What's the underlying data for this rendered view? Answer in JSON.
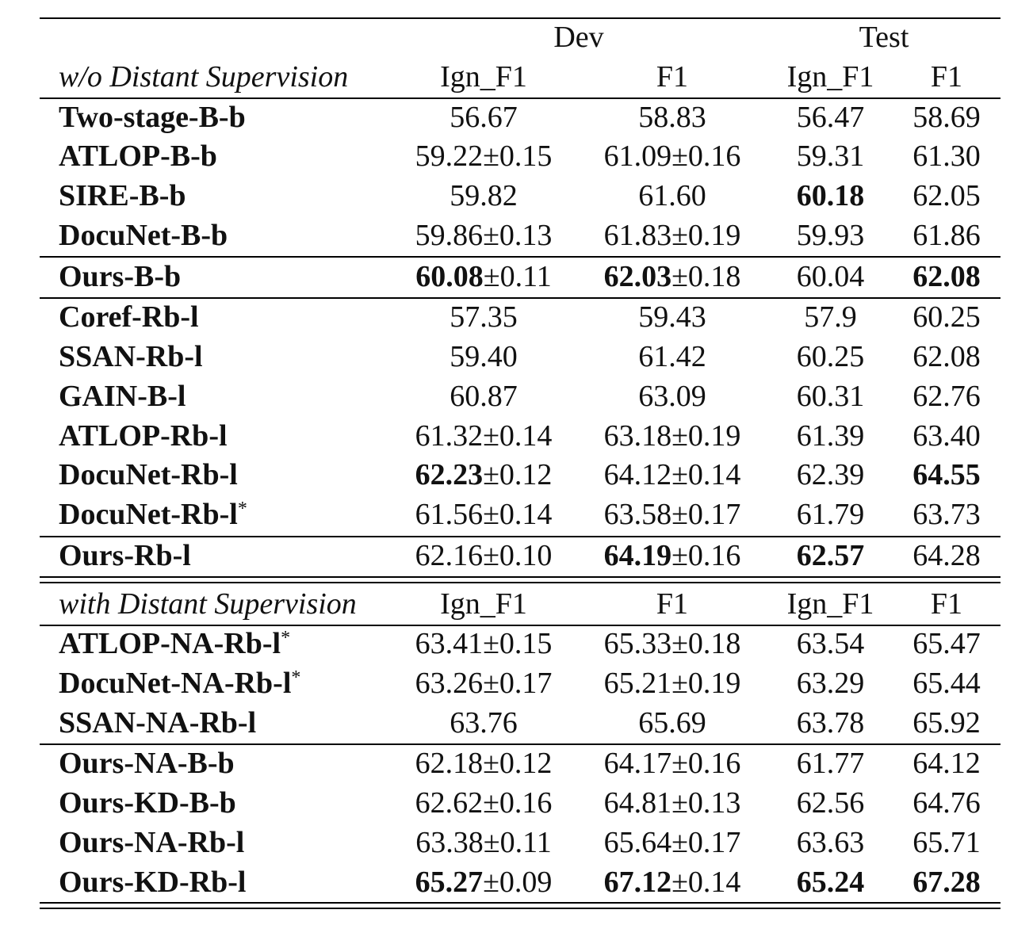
{
  "header": {
    "dev": "Dev",
    "test": "Test",
    "section1": "w/o Distant Supervision",
    "section2": "with Distant Supervision",
    "col_ign": "Ign_F1",
    "col_f1": "F1"
  },
  "rows": [
    {
      "name": "Two-stage-B-b",
      "sup": "",
      "dev_ign": "56.67",
      "dev_ign_pm": "",
      "dev_f1": "58.83",
      "dev_f1_pm": "",
      "test_ign": "56.47",
      "test_f1": "58.69",
      "bold": []
    },
    {
      "name": "ATLOP-B-b",
      "sup": "",
      "dev_ign": "59.22",
      "dev_ign_pm": "±0.15",
      "dev_f1": "61.09",
      "dev_f1_pm": "±0.16",
      "test_ign": "59.31",
      "test_f1": "61.30",
      "bold": []
    },
    {
      "name": "SIRE-B-b",
      "sup": "",
      "dev_ign": "59.82",
      "dev_ign_pm": "",
      "dev_f1": "61.60",
      "dev_f1_pm": "",
      "test_ign": "60.18",
      "test_f1": "62.05",
      "bold": [
        "test_ign"
      ]
    },
    {
      "name": "DocuNet-B-b",
      "sup": "",
      "dev_ign": "59.86",
      "dev_ign_pm": "±0.13",
      "dev_f1": "61.83",
      "dev_f1_pm": "±0.19",
      "test_ign": "59.93",
      "test_f1": "61.86",
      "bold": []
    },
    {
      "name": "Ours-B-b",
      "sup": "",
      "dev_ign": "60.08",
      "dev_ign_pm": "±0.11",
      "dev_f1": "62.03",
      "dev_f1_pm": "±0.18",
      "test_ign": "60.04",
      "test_f1": "62.08",
      "bold": [
        "dev_ign",
        "dev_f1",
        "test_f1"
      ]
    },
    {
      "name": "Coref-Rb-l",
      "sup": "",
      "dev_ign": "57.35",
      "dev_ign_pm": "",
      "dev_f1": "59.43",
      "dev_f1_pm": "",
      "test_ign": "57.9",
      "test_f1": "60.25",
      "bold": []
    },
    {
      "name": "SSAN-Rb-l",
      "sup": "",
      "dev_ign": "59.40",
      "dev_ign_pm": "",
      "dev_f1": "61.42",
      "dev_f1_pm": "",
      "test_ign": "60.25",
      "test_f1": "62.08",
      "bold": []
    },
    {
      "name": "GAIN-B-l",
      "sup": "",
      "dev_ign": "60.87",
      "dev_ign_pm": "",
      "dev_f1": "63.09",
      "dev_f1_pm": "",
      "test_ign": "60.31",
      "test_f1": "62.76",
      "bold": []
    },
    {
      "name": "ATLOP-Rb-l",
      "sup": "",
      "dev_ign": "61.32",
      "dev_ign_pm": "±0.14",
      "dev_f1": "63.18",
      "dev_f1_pm": "±0.19",
      "test_ign": "61.39",
      "test_f1": "63.40",
      "bold": []
    },
    {
      "name": "DocuNet-Rb-l",
      "sup": "",
      "dev_ign": "62.23",
      "dev_ign_pm": "±0.12",
      "dev_f1": "64.12",
      "dev_f1_pm": "±0.14",
      "test_ign": "62.39",
      "test_f1": "64.55",
      "bold": [
        "dev_ign",
        "test_f1"
      ]
    },
    {
      "name": "DocuNet-Rb-l",
      "sup": "*",
      "dev_ign": "61.56",
      "dev_ign_pm": "±0.14",
      "dev_f1": "63.58",
      "dev_f1_pm": "±0.17",
      "test_ign": "61.79",
      "test_f1": "63.73",
      "bold": []
    },
    {
      "name": "Ours-Rb-l",
      "sup": "",
      "dev_ign": "62.16",
      "dev_ign_pm": "±0.10",
      "dev_f1": "64.19",
      "dev_f1_pm": "±0.16",
      "test_ign": "62.57",
      "test_f1": "64.28",
      "bold": [
        "dev_f1",
        "test_ign"
      ]
    },
    {
      "name": "ATLOP-NA-Rb-l",
      "sup": "*",
      "dev_ign": "63.41",
      "dev_ign_pm": "±0.15",
      "dev_f1": "65.33",
      "dev_f1_pm": "±0.18",
      "test_ign": "63.54",
      "test_f1": "65.47",
      "bold": []
    },
    {
      "name": "DocuNet-NA-Rb-l",
      "sup": "*",
      "dev_ign": "63.26",
      "dev_ign_pm": "±0.17",
      "dev_f1": "65.21",
      "dev_f1_pm": "±0.19",
      "test_ign": "63.29",
      "test_f1": "65.44",
      "bold": []
    },
    {
      "name": "SSAN-NA-Rb-l",
      "sup": "",
      "dev_ign": "63.76",
      "dev_ign_pm": "",
      "dev_f1": "65.69",
      "dev_f1_pm": "",
      "test_ign": "63.78",
      "test_f1": "65.92",
      "bold": []
    },
    {
      "name": "Ours-NA-B-b",
      "sup": "",
      "dev_ign": "62.18",
      "dev_ign_pm": "±0.12",
      "dev_f1": "64.17",
      "dev_f1_pm": "±0.16",
      "test_ign": "61.77",
      "test_f1": "64.12",
      "bold": []
    },
    {
      "name": "Ours-KD-B-b",
      "sup": "",
      "dev_ign": "62.62",
      "dev_ign_pm": "±0.16",
      "dev_f1": "64.81",
      "dev_f1_pm": "±0.13",
      "test_ign": "62.56",
      "test_f1": "64.76",
      "bold": []
    },
    {
      "name": "Ours-NA-Rb-l",
      "sup": "",
      "dev_ign": "63.38",
      "dev_ign_pm": "±0.11",
      "dev_f1": "65.64",
      "dev_f1_pm": "±0.17",
      "test_ign": "63.63",
      "test_f1": "65.71",
      "bold": []
    },
    {
      "name": "Ours-KD-Rb-l",
      "sup": "",
      "dev_ign": "65.27",
      "dev_ign_pm": "±0.09",
      "dev_f1": "67.12",
      "dev_f1_pm": "±0.14",
      "test_ign": "65.24",
      "test_f1": "67.28",
      "bold": [
        "dev_ign",
        "dev_f1",
        "test_ign",
        "test_f1"
      ]
    }
  ]
}
